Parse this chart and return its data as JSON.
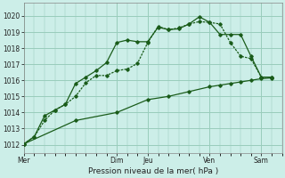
{
  "background_color": "#cceee8",
  "grid_color": "#99ccbb",
  "line_color": "#1a5c1a",
  "title": "Pression niveau de la mer( hPa )",
  "ylim": [
    1011.5,
    1020.8
  ],
  "yticks": [
    1012,
    1013,
    1014,
    1015,
    1016,
    1017,
    1018,
    1019,
    1020
  ],
  "day_labels": [
    "Mer",
    "Dim",
    "Jeu",
    "Ven",
    "Sam"
  ],
  "day_positions": [
    0,
    9,
    12,
    18,
    23
  ],
  "xmax": 25,
  "line1_x": [
    0,
    1,
    2,
    3,
    4,
    5,
    6,
    7,
    8,
    9,
    10,
    11,
    12,
    13,
    14,
    15,
    16,
    17,
    18,
    19,
    20,
    21,
    22,
    23,
    24
  ],
  "line1_y": [
    1012.05,
    1012.5,
    1013.8,
    1014.15,
    1014.5,
    1015.8,
    1016.2,
    1016.6,
    1017.1,
    1018.35,
    1018.5,
    1018.4,
    1018.4,
    1019.3,
    1019.15,
    1019.2,
    1019.5,
    1019.95,
    1019.6,
    1018.85,
    1018.85,
    1018.85,
    1017.5,
    1016.2,
    1016.2
  ],
  "line2_x": [
    0,
    1,
    2,
    3,
    4,
    5,
    6,
    7,
    8,
    9,
    10,
    11,
    12,
    13,
    14,
    15,
    16,
    17,
    18,
    19,
    20,
    21,
    22,
    23,
    24
  ],
  "line2_y": [
    1012.05,
    1012.5,
    1013.5,
    1014.15,
    1014.5,
    1015.0,
    1015.85,
    1016.3,
    1016.3,
    1016.6,
    1016.7,
    1017.05,
    1018.35,
    1019.35,
    1019.15,
    1019.25,
    1019.5,
    1019.65,
    1019.6,
    1019.5,
    1018.35,
    1017.5,
    1017.35,
    1016.2,
    1016.2
  ],
  "line3_x": [
    0,
    5,
    9,
    12,
    14,
    16,
    18,
    19,
    20,
    21,
    22,
    23,
    24
  ],
  "line3_y": [
    1012.05,
    1013.5,
    1014.0,
    1014.8,
    1015.0,
    1015.3,
    1015.6,
    1015.7,
    1015.8,
    1015.9,
    1016.0,
    1016.1,
    1016.15
  ]
}
